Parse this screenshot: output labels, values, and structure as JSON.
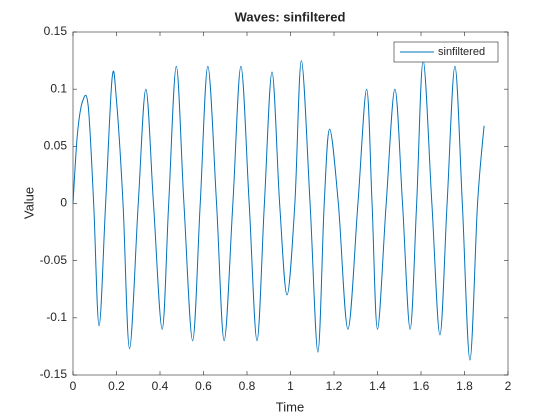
{
  "chart_data": {
    "type": "line",
    "title": "Waves: sinfiltered",
    "xlabel": "Time",
    "ylabel": "Value",
    "x": [
      0,
      0.02,
      0.045,
      0.07,
      0.095,
      0.12,
      0.15,
      0.18,
      0.2,
      0.23,
      0.26,
      0.3,
      0.335,
      0.37,
      0.41,
      0.44,
      0.475,
      0.51,
      0.55,
      0.585,
      0.62,
      0.66,
      0.695,
      0.735,
      0.772,
      0.81,
      0.846,
      0.88,
      0.915,
      0.95,
      0.984,
      1.02,
      1.05,
      1.09,
      1.126,
      1.155,
      1.18,
      1.22,
      1.264,
      1.31,
      1.35,
      1.375,
      1.4,
      1.44,
      1.48,
      1.515,
      1.55,
      1.58,
      1.61,
      1.65,
      1.687,
      1.72,
      1.756,
      1.79,
      1.825,
      1.86,
      1.89
    ],
    "series": [
      {
        "name": "sinfiltered",
        "color": "#0072bd",
        "values": [
          0,
          0.06,
          0.09,
          0.085,
          0,
          -0.107,
          0,
          0.11,
          0.09,
          0,
          -0.127,
          0,
          0.1,
          0,
          -0.11,
          0,
          0.12,
          0,
          -0.12,
          0,
          0.12,
          0,
          -0.12,
          0,
          0.12,
          0,
          -0.12,
          0,
          0.115,
          0,
          -0.08,
          0,
          0.125,
          0,
          -0.13,
          0,
          0.065,
          0,
          -0.11,
          0,
          0.1,
          0,
          -0.11,
          0,
          0.1,
          0,
          -0.11,
          0,
          0.125,
          0,
          -0.115,
          0,
          0.12,
          0,
          -0.137,
          0,
          0.068
        ]
      }
    ],
    "xlim": [
      0,
      2
    ],
    "xticks": [
      0,
      0.2,
      0.4,
      0.6,
      0.8,
      1,
      1.2,
      1.4,
      1.6,
      1.8,
      2
    ],
    "ylim": [
      -0.15,
      0.15
    ],
    "yticks": [
      -0.15,
      -0.1,
      -0.05,
      0,
      0.05,
      0.1,
      0.15
    ],
    "grid": false,
    "legend": "northeast"
  }
}
